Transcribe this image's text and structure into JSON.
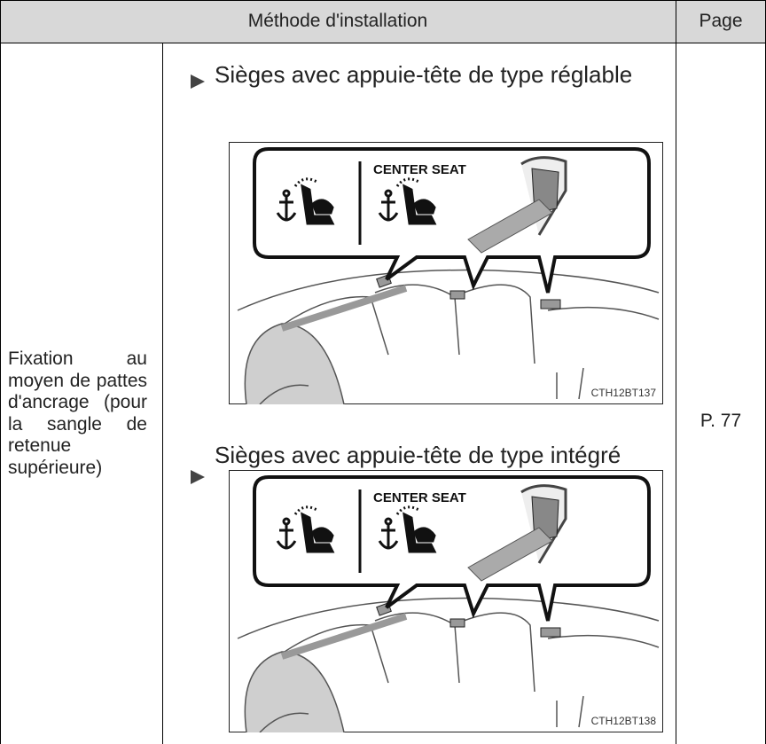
{
  "table": {
    "header": [
      "Méthode d'installation",
      "Page"
    ],
    "rows": [
      {
        "method": "Fixation au moyen de pattes d'ancrage (pour la sangle de retenue supérieure)",
        "items": [
          {
            "label": "Sièges avec appuie-tête de type réglable",
            "figure": {
              "caption": "CENTER SEAT",
              "code": "CTH12BT137"
            }
          },
          {
            "label": "Sièges avec appuie-tête de type intégré",
            "figure": {
              "caption": "CENTER SEAT",
              "code": "CTH12BT138"
            }
          }
        ],
        "page": "P. 77"
      }
    ]
  }
}
